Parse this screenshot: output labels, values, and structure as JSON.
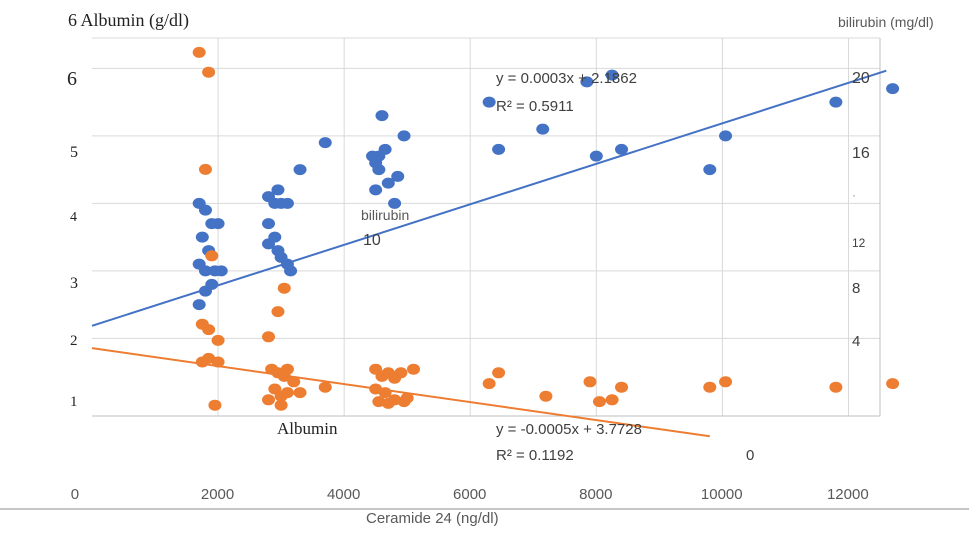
{
  "chart_data": {
    "type": "scatter",
    "title": "",
    "xlabel": "Ceramide 24 (ng/dl)",
    "ylabel": "6 Albumin (g/dl)",
    "y2label": "bilirubin (mg/dl)",
    "xlim": [
      0,
      12500
    ],
    "x_ticks": [
      "0",
      "2000",
      "4000",
      "6000",
      "8000",
      "10000",
      "12000"
    ],
    "y_left_ticks": [
      "6",
      "5",
      "4",
      "3",
      "2",
      "1"
    ],
    "y_right_ticks": [
      "20",
      "16",
      "12",
      "8",
      "4"
    ],
    "grid": true,
    "stray_labels": {
      "bilirubin_word": "bilirubin",
      "ten": "10",
      "albumin_word": "Albumin",
      "zero": "0",
      "dot": "·"
    },
    "colors": {
      "albumin": "#4472C4",
      "bilirubin": "#ED7D31",
      "grid": "#D9D9D9"
    },
    "series": [
      {
        "key": "albumin",
        "color": "#4472C4",
        "axis": "left",
        "ylim": [
          0.85,
          6.45
        ],
        "points": [
          [
            1700,
            4.0
          ],
          [
            1800,
            3.9
          ],
          [
            1900,
            3.7
          ],
          [
            2000,
            3.7
          ],
          [
            1750,
            3.5
          ],
          [
            1850,
            3.3
          ],
          [
            1700,
            3.1
          ],
          [
            1800,
            3.0
          ],
          [
            1950,
            3.0
          ],
          [
            2050,
            3.0
          ],
          [
            1900,
            2.8
          ],
          [
            1800,
            2.7
          ],
          [
            1700,
            2.5
          ],
          [
            2800,
            4.1
          ],
          [
            2950,
            4.2
          ],
          [
            3000,
            4.0
          ],
          [
            2900,
            4.0
          ],
          [
            3100,
            4.0
          ],
          [
            2800,
            3.7
          ],
          [
            2900,
            3.5
          ],
          [
            2800,
            3.4
          ],
          [
            2950,
            3.3
          ],
          [
            3000,
            3.2
          ],
          [
            3100,
            3.1
          ],
          [
            3150,
            3.0
          ],
          [
            3300,
            4.5
          ],
          [
            3700,
            4.9
          ],
          [
            4450,
            4.7
          ],
          [
            4500,
            4.6
          ],
          [
            4550,
            4.5
          ],
          [
            4500,
            4.2
          ],
          [
            4600,
            5.3
          ],
          [
            4650,
            4.8
          ],
          [
            4550,
            4.7
          ],
          [
            4700,
            4.3
          ],
          [
            4850,
            4.4
          ],
          [
            4950,
            5.0
          ],
          [
            4800,
            4.0
          ],
          [
            6300,
            5.5
          ],
          [
            6450,
            4.8
          ],
          [
            7150,
            5.1
          ],
          [
            7850,
            5.8
          ],
          [
            8250,
            5.9
          ],
          [
            8000,
            4.7
          ],
          [
            8400,
            4.8
          ],
          [
            9800,
            4.5
          ],
          [
            10050,
            5.0
          ],
          [
            11800,
            5.5
          ],
          [
            12700,
            5.7
          ]
        ]
      },
      {
        "key": "bilirubin",
        "color": "#ED7D31",
        "axis": "right",
        "ylim": [
          0,
          21
        ],
        "points": [
          [
            1700,
            20.2
          ],
          [
            1850,
            19.1
          ],
          [
            1800,
            13.7
          ],
          [
            1900,
            8.9
          ],
          [
            1750,
            5.1
          ],
          [
            1850,
            4.8
          ],
          [
            2000,
            4.2
          ],
          [
            1750,
            3.0
          ],
          [
            1850,
            3.2
          ],
          [
            2000,
            3.0
          ],
          [
            1950,
            0.6
          ],
          [
            2800,
            4.4
          ],
          [
            2850,
            2.6
          ],
          [
            2950,
            2.4
          ],
          [
            3050,
            2.2
          ],
          [
            3100,
            2.6
          ],
          [
            3200,
            1.9
          ],
          [
            2900,
            1.5
          ],
          [
            3000,
            1.1
          ],
          [
            3100,
            1.3
          ],
          [
            3300,
            1.3
          ],
          [
            2800,
            0.9
          ],
          [
            3000,
            0.6
          ],
          [
            3050,
            7.1
          ],
          [
            2950,
            5.8
          ],
          [
            3700,
            1.6
          ],
          [
            4500,
            2.6
          ],
          [
            4600,
            2.2
          ],
          [
            4700,
            2.4
          ],
          [
            4800,
            2.1
          ],
          [
            4900,
            2.4
          ],
          [
            5100,
            2.6
          ],
          [
            4500,
            1.5
          ],
          [
            4650,
            1.3
          ],
          [
            4800,
            0.9
          ],
          [
            4550,
            0.8
          ],
          [
            4700,
            0.7
          ],
          [
            4950,
            0.8
          ],
          [
            5000,
            1.0
          ],
          [
            6300,
            1.8
          ],
          [
            6450,
            2.4
          ],
          [
            7200,
            1.1
          ],
          [
            7900,
            1.9
          ],
          [
            8050,
            0.8
          ],
          [
            8250,
            0.9
          ],
          [
            8400,
            1.6
          ],
          [
            9800,
            1.6
          ],
          [
            10050,
            1.9
          ],
          [
            11800,
            1.6
          ],
          [
            12700,
            1.8
          ]
        ]
      }
    ],
    "trendlines": [
      {
        "series": "albumin",
        "equation": "y = 0.0003x + 2.1862",
        "r2": "R² = 0.5911",
        "slope": 0.0003,
        "intercept": 2.1862
      },
      {
        "series": "bilirubin",
        "equation": "y = -0.0005x + 3.7728",
        "r2": "R² = 0.1192",
        "slope": -0.0005,
        "intercept": 3.7728
      }
    ]
  }
}
